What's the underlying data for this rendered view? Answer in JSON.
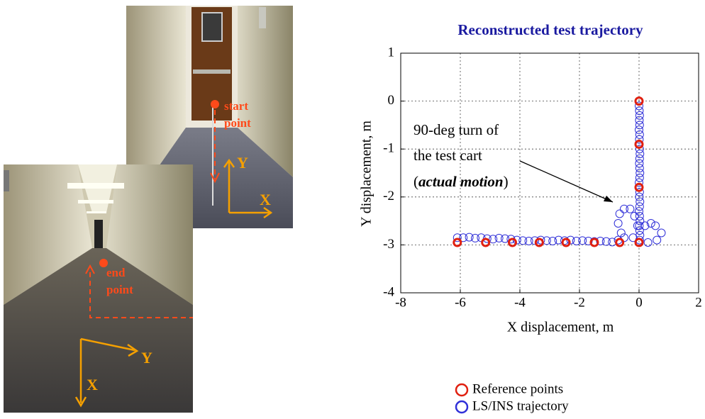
{
  "photos": {
    "top": {
      "marker_label": [
        "start",
        "point"
      ],
      "y_axis": "Y",
      "x_axis": "X"
    },
    "bottom": {
      "marker_label": [
        "end",
        "point"
      ],
      "y_axis": "Y",
      "x_axis": "X"
    }
  },
  "chart_data": {
    "type": "scatter",
    "title": "Reconstructed test trajectory",
    "xlabel": "X displacement, m",
    "ylabel": "Y displacement, m",
    "xlim": [
      -8,
      2
    ],
    "ylim": [
      -4,
      1
    ],
    "xticks": [
      -8,
      -6,
      -4,
      -2,
      0,
      2
    ],
    "yticks": [
      -4,
      -3,
      -2,
      -1,
      0,
      1
    ],
    "grid": true,
    "annotation": {
      "lines": [
        "90-deg turn of",
        "the test cart"
      ],
      "prefix": "(",
      "emphasis": "actual motion",
      "suffix": ")"
    },
    "series": [
      {
        "name": "Reference points",
        "color": "#e02010",
        "x": [
          0,
          0,
          0,
          0,
          -0.65,
          -1.5,
          -2.45,
          -3.35,
          -4.25,
          -5.15,
          -6.1
        ],
        "values": [
          0,
          -0.9,
          -1.8,
          -2.95,
          -2.95,
          -2.95,
          -2.95,
          -2.95,
          -2.95,
          -2.95,
          -2.95
        ]
      },
      {
        "name": "LS/INS trajectory",
        "color": "#3030d8",
        "x": [
          -6.1,
          -5.9,
          -5.7,
          -5.5,
          -5.3,
          -5.1,
          -4.9,
          -4.7,
          -4.5,
          -4.3,
          -4.1,
          -3.9,
          -3.7,
          -3.5,
          -3.3,
          -3.1,
          -2.9,
          -2.7,
          -2.5,
          -2.3,
          -2.1,
          -1.9,
          -1.7,
          -1.5,
          -1.3,
          -1.1,
          -0.9,
          -0.7,
          -0.5,
          -0.6,
          -0.7,
          -0.65,
          -0.5,
          -0.3,
          -0.15,
          -0.05,
          -0.2,
          0.2,
          0.4,
          0.55,
          0.75,
          0.6,
          0.3,
          0.02,
          0.03,
          0.02,
          0.01,
          0.03,
          0.02,
          0.0,
          0.02,
          0.03,
          0.01,
          0.02,
          0.0,
          0.02,
          0.03,
          0.02,
          0.01,
          0.02,
          0.03,
          0.02,
          0.01,
          0.02,
          0.0,
          0.02,
          0.01,
          0.02,
          0.01,
          0.0
        ],
        "values": [
          -2.85,
          -2.85,
          -2.84,
          -2.86,
          -2.85,
          -2.87,
          -2.88,
          -2.86,
          -2.87,
          -2.88,
          -2.9,
          -2.91,
          -2.92,
          -2.91,
          -2.9,
          -2.91,
          -2.92,
          -2.9,
          -2.91,
          -2.9,
          -2.92,
          -2.91,
          -2.92,
          -2.93,
          -2.92,
          -2.93,
          -2.94,
          -2.9,
          -2.85,
          -2.75,
          -2.55,
          -2.35,
          -2.25,
          -2.25,
          -2.4,
          -2.6,
          -2.85,
          -2.6,
          -2.55,
          -2.6,
          -2.75,
          -2.9,
          -2.95,
          -2.9,
          -2.8,
          -2.7,
          -2.6,
          -2.5,
          -2.4,
          -2.3,
          -2.2,
          -2.1,
          -2.0,
          -1.9,
          -1.7,
          -1.6,
          -1.5,
          -1.4,
          -1.3,
          -1.2,
          -1.1,
          -1.0,
          -0.8,
          -0.7,
          -0.6,
          -0.5,
          -0.4,
          -0.3,
          -0.2,
          -0.1
        ]
      }
    ]
  }
}
